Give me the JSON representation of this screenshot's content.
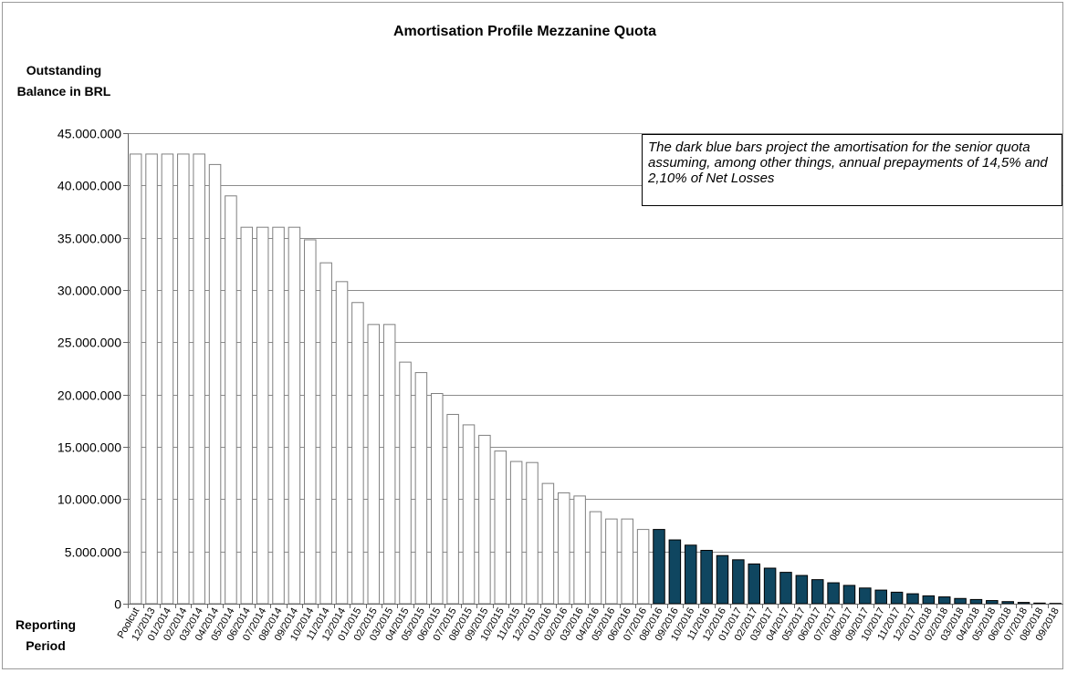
{
  "chart_data": {
    "type": "bar",
    "title": "Amortisation Profile Mezzanine Quota",
    "ylabel_lines": [
      "Outstanding",
      "Balance in BRL"
    ],
    "xlabel_lines": [
      "Reporting",
      "Period"
    ],
    "ylim": [
      0,
      45000000
    ],
    "yticks": [
      0,
      5000000,
      10000000,
      15000000,
      20000000,
      25000000,
      30000000,
      35000000,
      40000000,
      45000000
    ],
    "ytick_labels": [
      "0",
      "5.000.000",
      "10.000.000",
      "15.000.000",
      "20.000.000",
      "25.000.000",
      "30.000.000",
      "35.000.000",
      "40.000.000",
      "45.000.000"
    ],
    "grid": "horizontal",
    "annotation": "The dark blue bars project the amortisation for the senior quota assuming, among other things, annual prepayments of 14,5% and 2,10% of Net Losses",
    "colors": {
      "actual_fill": "#ffffff",
      "actual_edge": "#7f7f7f",
      "projected_fill": "#0f4660",
      "projected_edge": "#000000",
      "grid": "#8c8c8c"
    },
    "categories": [
      "Poolcut",
      "12/2013",
      "01/2014",
      "02/2014",
      "03/2014",
      "04/2014",
      "05/2014",
      "06/2014",
      "07/2014",
      "08/2014",
      "09/2014",
      "10/2014",
      "11/2014",
      "12/2014",
      "01/2015",
      "02/2015",
      "03/2015",
      "04/2015",
      "05/2015",
      "06/2015",
      "07/2015",
      "08/2015",
      "09/2015",
      "10/2015",
      "11/2015",
      "12/2015",
      "01/2016",
      "02/2016",
      "03/2016",
      "04/2016",
      "05/2016",
      "06/2016",
      "07/2016",
      "08/2016",
      "09/2016",
      "10/2016",
      "11/2016",
      "12/2016",
      "01/2017",
      "02/2017",
      "03/2017",
      "04/2017",
      "05/2017",
      "06/2017",
      "07/2017",
      "08/2017",
      "09/2017",
      "10/2017",
      "11/2017",
      "12/2017",
      "01/2018",
      "02/2018",
      "03/2018",
      "04/2018",
      "05/2018",
      "06/2018",
      "07/2018",
      "08/2018",
      "09/2018"
    ],
    "series": [
      {
        "kind": "actual",
        "values": [
          43000000,
          43000000,
          43000000,
          43000000,
          43000000,
          42000000,
          39000000,
          36000000,
          36000000,
          36000000,
          36000000,
          34800000,
          32600000,
          30800000,
          28800000,
          26700000,
          26700000,
          23100000,
          22100000,
          20100000,
          18100000,
          17100000,
          16100000,
          14600000,
          13600000,
          13500000,
          11500000,
          10600000,
          10300000,
          8800000,
          8100000,
          8100000,
          7100000,
          null,
          null,
          null,
          null,
          null,
          null,
          null,
          null,
          null,
          null,
          null,
          null,
          null,
          null,
          null,
          null,
          null,
          null,
          null,
          null,
          null,
          null,
          null,
          null,
          null,
          null
        ]
      },
      {
        "kind": "projected",
        "values": [
          null,
          null,
          null,
          null,
          null,
          null,
          null,
          null,
          null,
          null,
          null,
          null,
          null,
          null,
          null,
          null,
          null,
          null,
          null,
          null,
          null,
          null,
          null,
          null,
          null,
          null,
          null,
          null,
          null,
          null,
          null,
          null,
          null,
          7100000,
          6100000,
          5600000,
          5100000,
          4600000,
          4200000,
          3800000,
          3400000,
          3000000,
          2700000,
          2300000,
          2000000,
          1750000,
          1500000,
          1300000,
          1100000,
          950000,
          750000,
          650000,
          500000,
          400000,
          300000,
          200000,
          120000,
          60000,
          30000
        ]
      }
    ]
  }
}
